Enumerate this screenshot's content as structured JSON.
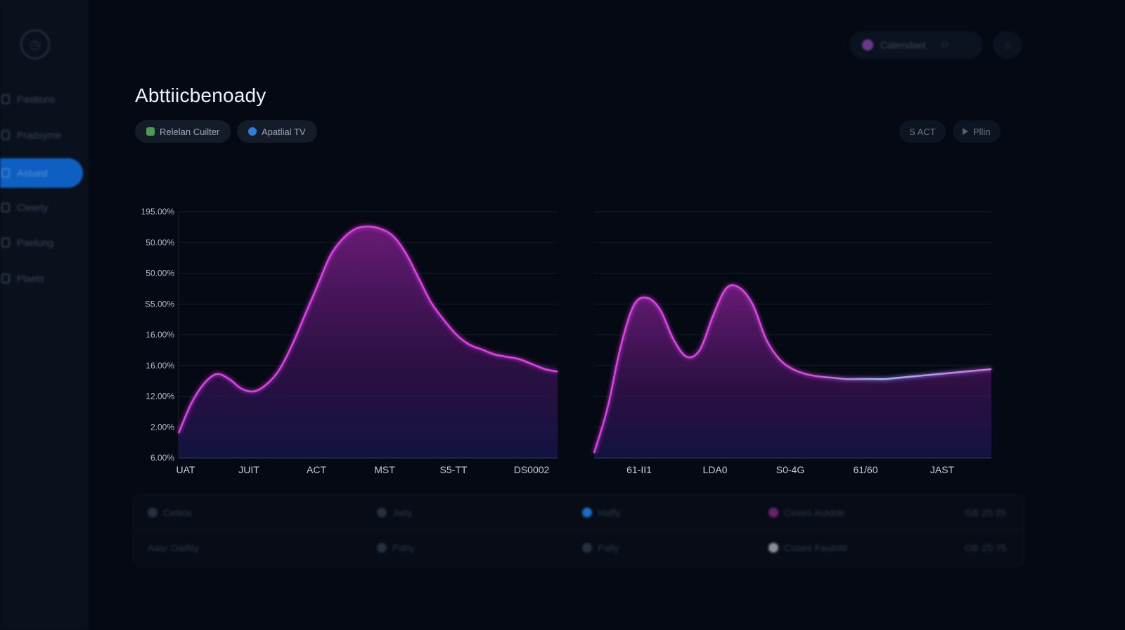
{
  "sidebar": {
    "logo_icon": "clock-icon",
    "items": [
      {
        "label": "Pasttons",
        "icon": "grid-icon"
      },
      {
        "label": "Pradsyme",
        "icon": "chart-icon"
      },
      {
        "label": "Astued",
        "icon": "activity-icon",
        "active": true
      },
      {
        "label": "Cleerty",
        "icon": "settings-icon"
      },
      {
        "label": "Paetung",
        "icon": "calendar-icon"
      },
      {
        "label": "Plaets",
        "icon": "file-icon"
      }
    ]
  },
  "topbar": {
    "user_label": "Catendaet",
    "user_dot_color": "#6a3a8a",
    "bell_icon": "bell-icon",
    "home_icon": "home-icon"
  },
  "page": {
    "title": "Abttiicbenoady",
    "filters": [
      {
        "label": "Relelan Cuilter",
        "icon": "green-square-icon"
      },
      {
        "label": "Apatlial TV",
        "icon": "globe-icon"
      }
    ],
    "right_chips": [
      {
        "label": "S ACT"
      },
      {
        "label": "Pllin",
        "icon": "play-icon"
      }
    ]
  },
  "chart_data": [
    {
      "type": "area",
      "y_tick_labels": [
        "195.00%",
        "50.00%",
        "50.00%",
        "S5.00%",
        "16.00%",
        "16.00%",
        "12.00%",
        "2.00%",
        "6.00%"
      ],
      "x_tick_labels": [
        "UAT",
        "JUIT",
        "ACT",
        "MST",
        "S5-TT",
        "DS0002"
      ],
      "x": [
        0,
        1,
        2,
        3,
        4,
        5,
        6,
        7,
        8,
        9,
        10,
        11,
        12,
        13,
        14,
        15,
        16,
        17,
        18,
        19,
        20,
        21,
        22,
        23,
        24,
        25,
        26,
        27,
        28,
        29,
        30
      ],
      "values": [
        0.1,
        0.22,
        0.3,
        0.34,
        0.32,
        0.28,
        0.27,
        0.3,
        0.36,
        0.46,
        0.58,
        0.7,
        0.82,
        0.89,
        0.93,
        0.94,
        0.93,
        0.9,
        0.83,
        0.73,
        0.63,
        0.56,
        0.5,
        0.46,
        0.44,
        0.42,
        0.41,
        0.4,
        0.38,
        0.36,
        0.35
      ],
      "ylim": [
        0,
        1
      ],
      "line_color": "#e040e8",
      "fill_color": "#6a1a78",
      "grid": true
    },
    {
      "type": "area",
      "x_tick_labels": [
        "61-II1",
        "LDA0",
        "S0-4G",
        "61/60",
        "JAST"
      ],
      "x": [
        0,
        1,
        2,
        3,
        4,
        5,
        6,
        7,
        8,
        9,
        10,
        11,
        12,
        13,
        14,
        15,
        16,
        17,
        18,
        19,
        20,
        21,
        22,
        23,
        24,
        25,
        26,
        27,
        28,
        29,
        30
      ],
      "values": [
        0.02,
        0.2,
        0.45,
        0.62,
        0.65,
        0.6,
        0.48,
        0.41,
        0.44,
        0.58,
        0.69,
        0.69,
        0.62,
        0.48,
        0.4,
        0.36,
        0.34,
        0.33,
        0.325,
        0.32,
        0.32,
        0.32,
        0.32,
        0.325,
        0.33,
        0.335,
        0.34,
        0.345,
        0.35,
        0.355,
        0.36
      ],
      "ylim": [
        0,
        1
      ],
      "line_color": "#e040e8",
      "tail_line_color": "#9fb0ff",
      "fill_color": "#6a1a78",
      "grid": true
    }
  ],
  "table": {
    "rows": [
      [
        {
          "label": "Ceteia",
          "icon": "cloud-icon"
        },
        {
          "label": "Jaily",
          "icon": "search-icon"
        },
        {
          "label": "Haffy",
          "icon": "blue-dot-icon"
        },
        {
          "label": "Coves Auldde",
          "icon": "pink-dot-icon"
        },
        {
          "label": "GB 25:35"
        }
      ],
      [
        {
          "label": "Aasr Oaifity"
        },
        {
          "label": "Pahy",
          "icon": "user-icon"
        },
        {
          "label": "Pally",
          "icon": "gear-icon"
        },
        {
          "label": "Coses Faulold",
          "icon": "gray-dot-icon"
        },
        {
          "label": "GB 25:75"
        }
      ]
    ]
  }
}
